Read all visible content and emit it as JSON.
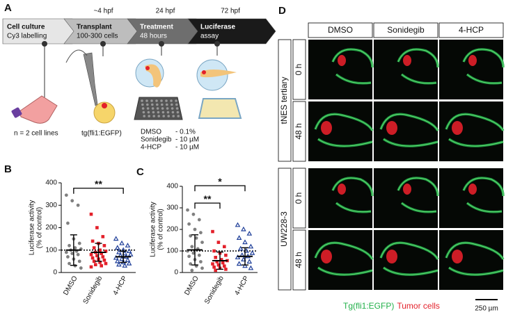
{
  "panel_a": {
    "panel": "A",
    "stages": [
      {
        "title": "Cell culture",
        "detail": "Cy3 labelling"
      },
      {
        "title": "Transplant",
        "detail": "100-300 cells",
        "time": "~4 hpf"
      },
      {
        "title": "Treatment",
        "detail": "48 hours",
        "time": "24 hpf"
      },
      {
        "title": "Luciferase",
        "detail": "assay",
        "time": "72 hpf"
      }
    ],
    "notes": [
      "n = 2 cell lines",
      "tg(fli1:EGFP)"
    ],
    "treatments": [
      {
        "drug": "DMSO",
        "dose": "- 0.1%"
      },
      {
        "drug": "Sonidegib",
        "dose": "- 10 µM"
      },
      {
        "drug": "4-HCP",
        "dose": "- 10 µM"
      }
    ]
  },
  "chart_data": [
    {
      "type": "strip",
      "panel": "B",
      "y_label": [
        "Luciferase activity",
        "(% of control)"
      ],
      "categories": [
        "DMSO",
        "Sonidegib",
        "4-HCP"
      ],
      "colors": [
        "#808080",
        "#e3202a",
        "#1f3f99"
      ],
      "markers": [
        "circle",
        "square",
        "triangle"
      ],
      "values": [
        [
          345,
          320,
          300,
          220,
          150,
          130,
          120,
          110,
          105,
          100,
          95,
          90,
          85,
          80,
          70,
          60,
          50,
          40,
          30,
          20
        ],
        [
          260,
          200,
          160,
          140,
          130,
          120,
          110,
          100,
          95,
          90,
          85,
          80,
          75,
          70,
          65,
          60,
          55,
          50,
          45,
          40,
          35,
          30,
          25
        ],
        [
          150,
          130,
          120,
          110,
          100,
          95,
          90,
          85,
          80,
          75,
          70,
          65,
          60,
          55,
          50,
          45,
          40,
          35,
          30
        ]
      ],
      "mean": [
        100,
        90,
        70
      ],
      "sd": [
        68,
        40,
        25
      ],
      "reference": 100,
      "ylim": [
        0,
        400
      ],
      "yticks": [
        0,
        100,
        200,
        300,
        400
      ],
      "annotations": [
        {
          "from": 0,
          "to": 2,
          "label": "**"
        }
      ]
    },
    {
      "type": "strip",
      "panel": "C",
      "y_label": [
        "Luciferase activity",
        "(% of control)"
      ],
      "categories": [
        "DMSO",
        "Sonidegib",
        "4-HCP"
      ],
      "colors": [
        "#808080",
        "#e3202a",
        "#1f3f99"
      ],
      "markers": [
        "circle",
        "square",
        "triangle"
      ],
      "values": [
        [
          290,
          270,
          245,
          225,
          200,
          185,
          170,
          160,
          140,
          120,
          110,
          100,
          90,
          80,
          75,
          60,
          50,
          40,
          30,
          20,
          10
        ],
        [
          190,
          140,
          120,
          100,
          90,
          80,
          70,
          60,
          55,
          50,
          45,
          40,
          35,
          30,
          25,
          20,
          15,
          10
        ],
        [
          220,
          200,
          180,
          160,
          140,
          120,
          110,
          100,
          90,
          80,
          75,
          70,
          60,
          50,
          40,
          30,
          20
        ]
      ],
      "mean": [
        105,
        55,
        75
      ],
      "sd": [
        70,
        40,
        40
      ],
      "reference": 100,
      "ylim": [
        0,
        400
      ],
      "yticks": [
        0,
        100,
        200,
        300,
        400
      ],
      "annotations": [
        {
          "from": 0,
          "to": 1,
          "label": "**"
        },
        {
          "from": 0,
          "to": 2,
          "label": "*"
        }
      ]
    }
  ],
  "panel_d": {
    "panel": "D",
    "columns": [
      "DMSO",
      "Sonidegib",
      "4-HCP"
    ],
    "rows": [
      {
        "group": "tNES tertiary",
        "times": [
          "0 h",
          "48 h"
        ]
      },
      {
        "group": "UW228-3",
        "times": [
          "0 h",
          "48 h"
        ]
      }
    ],
    "legend": [
      {
        "label": "Tg(fli1:EGFP)",
        "color": "#22b04a"
      },
      {
        "label": "Tumor cells",
        "color": "#e3202a"
      }
    ],
    "scale_bar": "250 µm"
  }
}
